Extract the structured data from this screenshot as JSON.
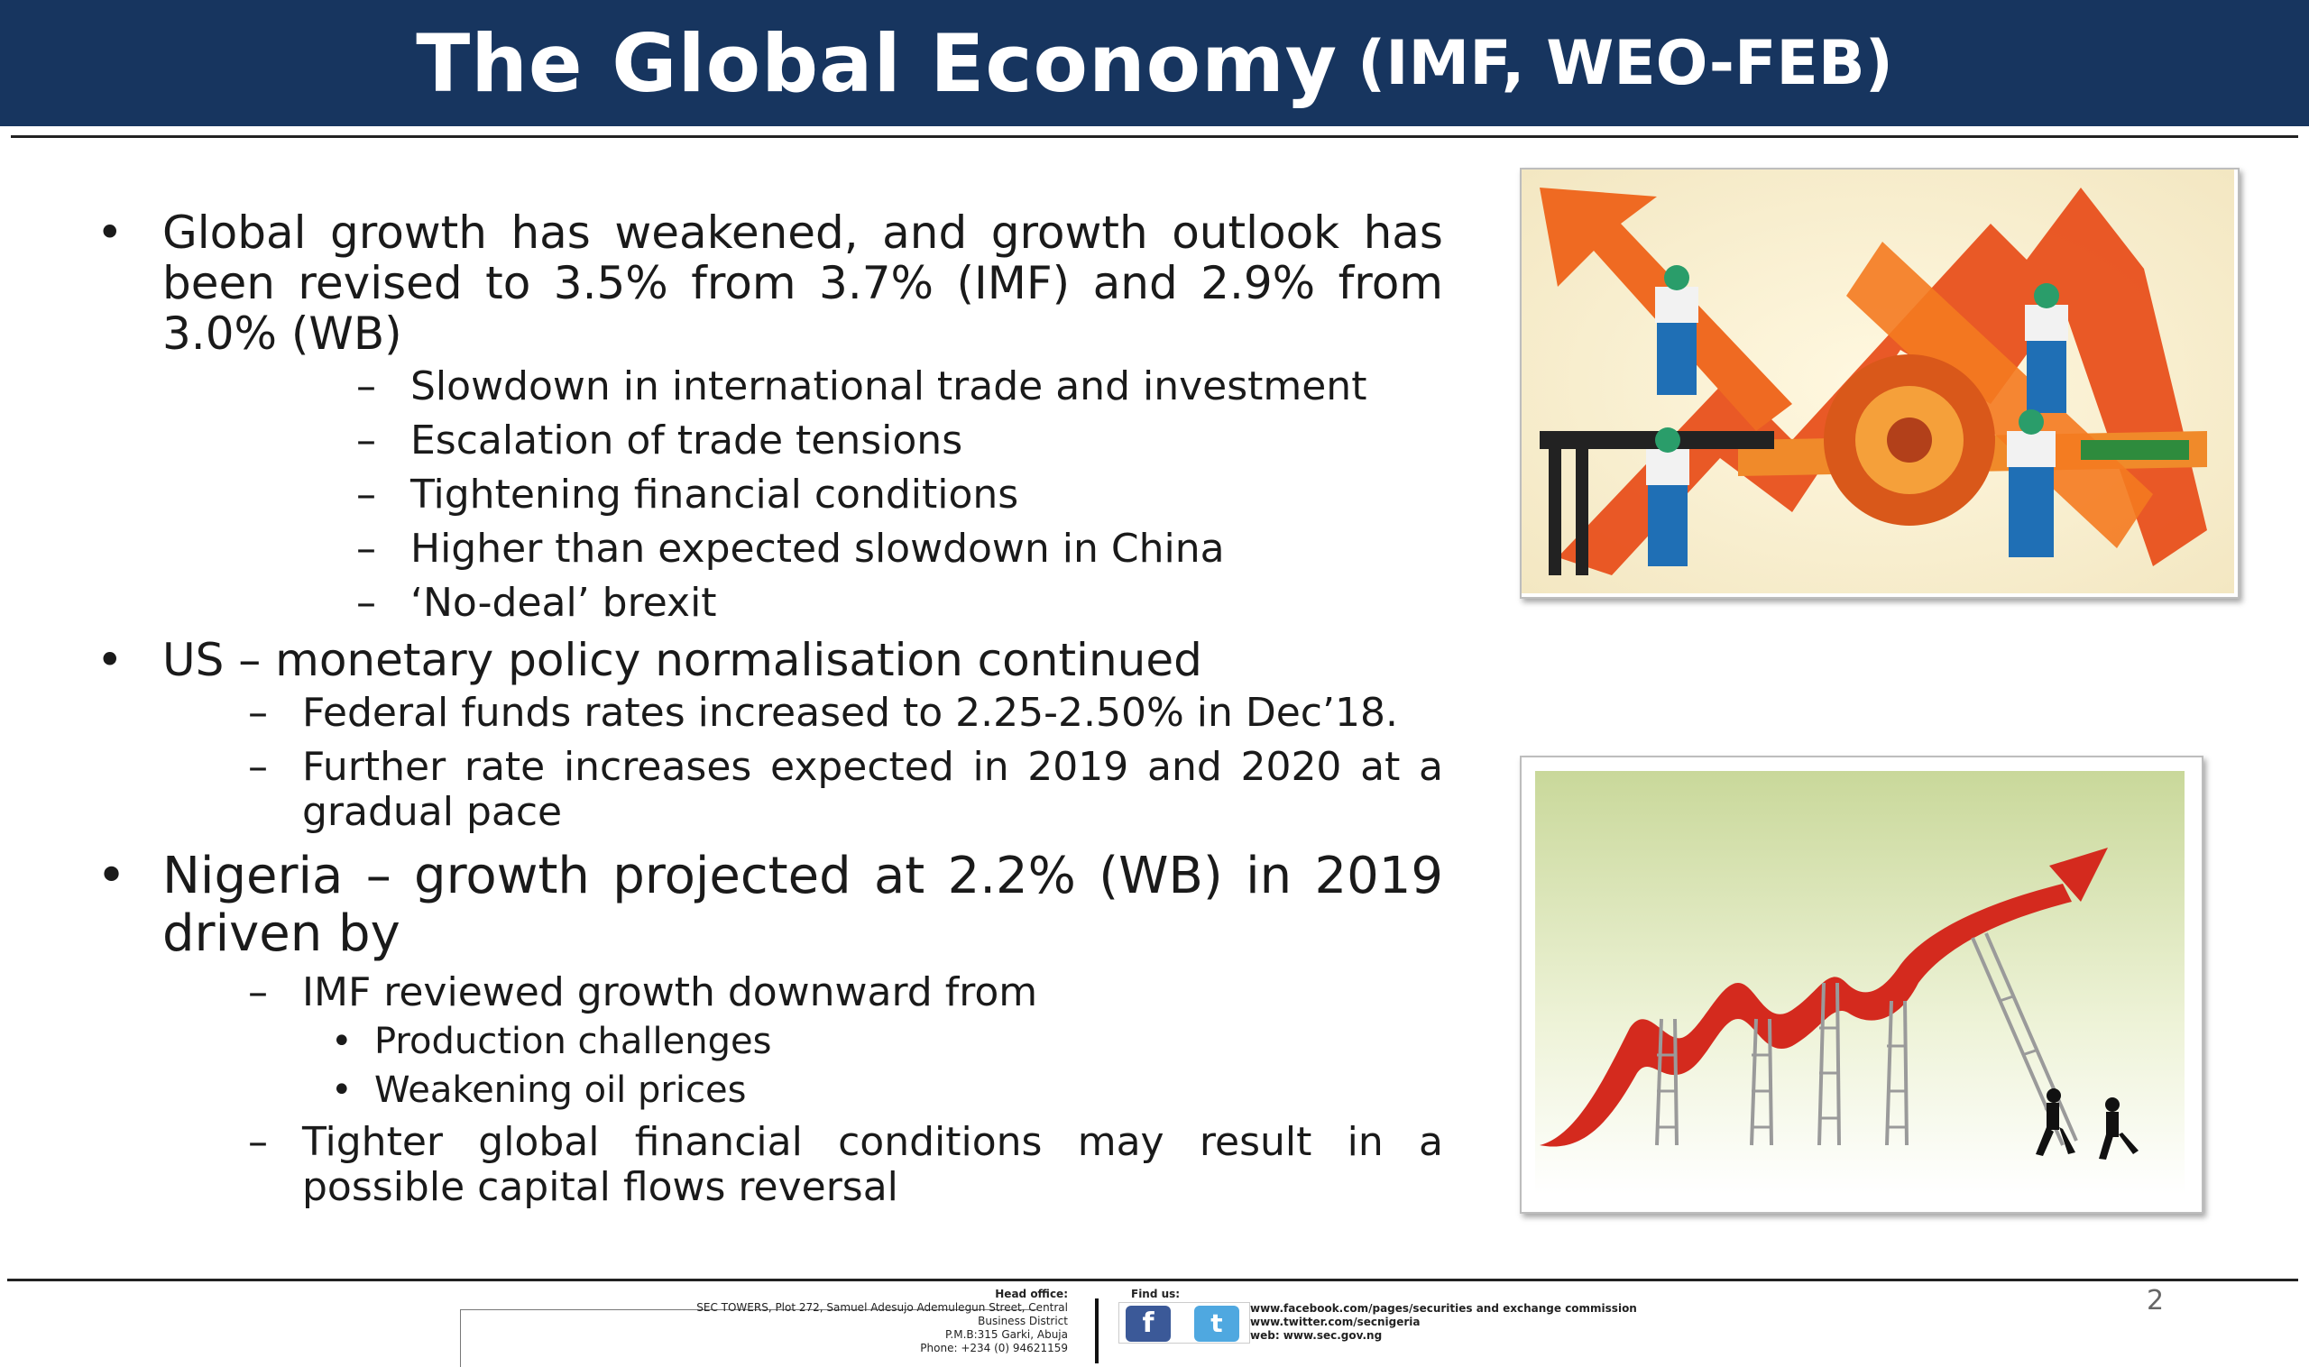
{
  "header": {
    "title": "The Global Economy",
    "subtitle": "(IMF, WEO-FEB)"
  },
  "bullets": {
    "b1": {
      "text": "Global growth has weakened, and growth outlook has been revised to 3.5% from 3.7% (IMF) and 2.9% from 3.0% (WB)",
      "subs": [
        "Slowdown in international trade and investment",
        "Escalation of trade tensions",
        "Tightening financial conditions",
        "Higher than expected slowdown in China",
        "‘No-deal’ brexit"
      ]
    },
    "b2": {
      "text": "US – monetary policy normalisation continued",
      "subs": [
        "Federal funds rates increased to 2.25-2.50% in Dec’18.",
        "Further  rate increases expected in 2019 and 2020 at a gradual pace"
      ]
    },
    "b3": {
      "text": "Nigeria – growth projected at 2.2% (WB) in 2019 driven by",
      "sub1": "IMF reviewed growth downward from",
      "sub1_items": [
        "Production challenges",
        "Weakening oil prices"
      ],
      "sub2": "Tighter global financial conditions may result in a possible capital flows reversal"
    }
  },
  "glyphs": {
    "bullet": "•",
    "dash": "–"
  },
  "footer": {
    "head_office_label": "Head office:",
    "address": [
      "SEC TOWERS, Plot 272, Samuel Adesujo Ademulegun Street, Central",
      "Business District",
      "P.M.B:315 Garki, Abuja",
      "Phone: +234 (0) 94621159"
    ],
    "find_us_label": "Find us:",
    "facebook": "www.facebook.com/pages/securities and exchange commission",
    "twitter": "www.twitter.com/secnigeria",
    "web": "web: www.sec.gov.ng",
    "facebook_glyph": "f",
    "twitter_glyph": "t",
    "page_number": "2"
  },
  "colors": {
    "header_bg": "#17355f",
    "arrow_orange": "#e8501c",
    "trend_red": "#d42a1e"
  }
}
